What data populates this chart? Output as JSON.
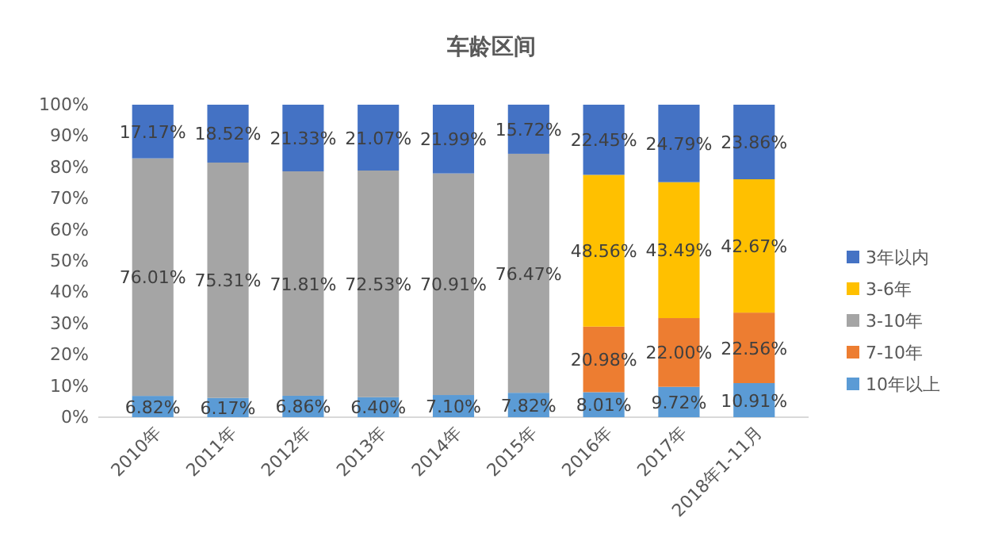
{
  "chart_data": {
    "type": "bar",
    "title": "车龄区间",
    "stacked": true,
    "categories": [
      "2010年",
      "2011年",
      "2012年",
      "2013年",
      "2014年",
      "2015年",
      "2016年",
      "2017年",
      "2018年1-11月"
    ],
    "series": [
      {
        "name": "10年以上",
        "color": "#5b9bd5",
        "values": [
          6.82,
          6.17,
          6.86,
          6.4,
          7.1,
          7.82,
          8.01,
          9.72,
          10.91
        ],
        "value_labels": [
          "6.82%",
          "6.17%",
          "6.86%",
          "6.40%",
          "7.10%",
          "7.82%",
          "8.01%",
          "9.72%",
          "10.91%"
        ]
      },
      {
        "name": "7-10年",
        "color": "#ed7d31",
        "values": [
          null,
          null,
          null,
          null,
          null,
          null,
          20.98,
          22.0,
          22.56
        ],
        "value_labels": [
          null,
          null,
          null,
          null,
          null,
          null,
          "20.98%",
          "22.00%",
          "22.56%"
        ]
      },
      {
        "name": "3-10年",
        "color": "#a5a5a5",
        "values": [
          76.01,
          75.31,
          71.81,
          72.53,
          70.91,
          76.47,
          null,
          null,
          null
        ],
        "value_labels": [
          "76.01%",
          "75.31%",
          "71.81%",
          "72.53%",
          "70.91%",
          "76.47%",
          null,
          null,
          null
        ]
      },
      {
        "name": "3-6年",
        "color": "#ffc000",
        "values": [
          null,
          null,
          null,
          null,
          null,
          null,
          48.56,
          43.49,
          42.67
        ],
        "value_labels": [
          null,
          null,
          null,
          null,
          null,
          null,
          "48.56%",
          "43.49%",
          "42.67%"
        ]
      },
      {
        "name": "3年以内",
        "color": "#4472c4",
        "values": [
          17.17,
          18.52,
          21.33,
          21.07,
          21.99,
          15.72,
          22.45,
          24.79,
          23.86
        ],
        "value_labels": [
          "17.17%",
          "18.52%",
          "21.33%",
          "21.07%",
          "21.99%",
          "15.72%",
          "22.45%",
          "24.79%",
          "23.86%"
        ]
      }
    ],
    "ylim": [
      0,
      100
    ],
    "yticks": [
      {
        "value": 0,
        "label": "0%"
      },
      {
        "value": 10,
        "label": "10%"
      },
      {
        "value": 20,
        "label": "20%"
      },
      {
        "value": 30,
        "label": "30%"
      },
      {
        "value": 40,
        "label": "40%"
      },
      {
        "value": 50,
        "label": "50%"
      },
      {
        "value": 60,
        "label": "60%"
      },
      {
        "value": 70,
        "label": "70%"
      },
      {
        "value": 80,
        "label": "80%"
      },
      {
        "value": 90,
        "label": "90%"
      },
      {
        "value": 100,
        "label": "100%"
      }
    ],
    "legend": "right"
  }
}
